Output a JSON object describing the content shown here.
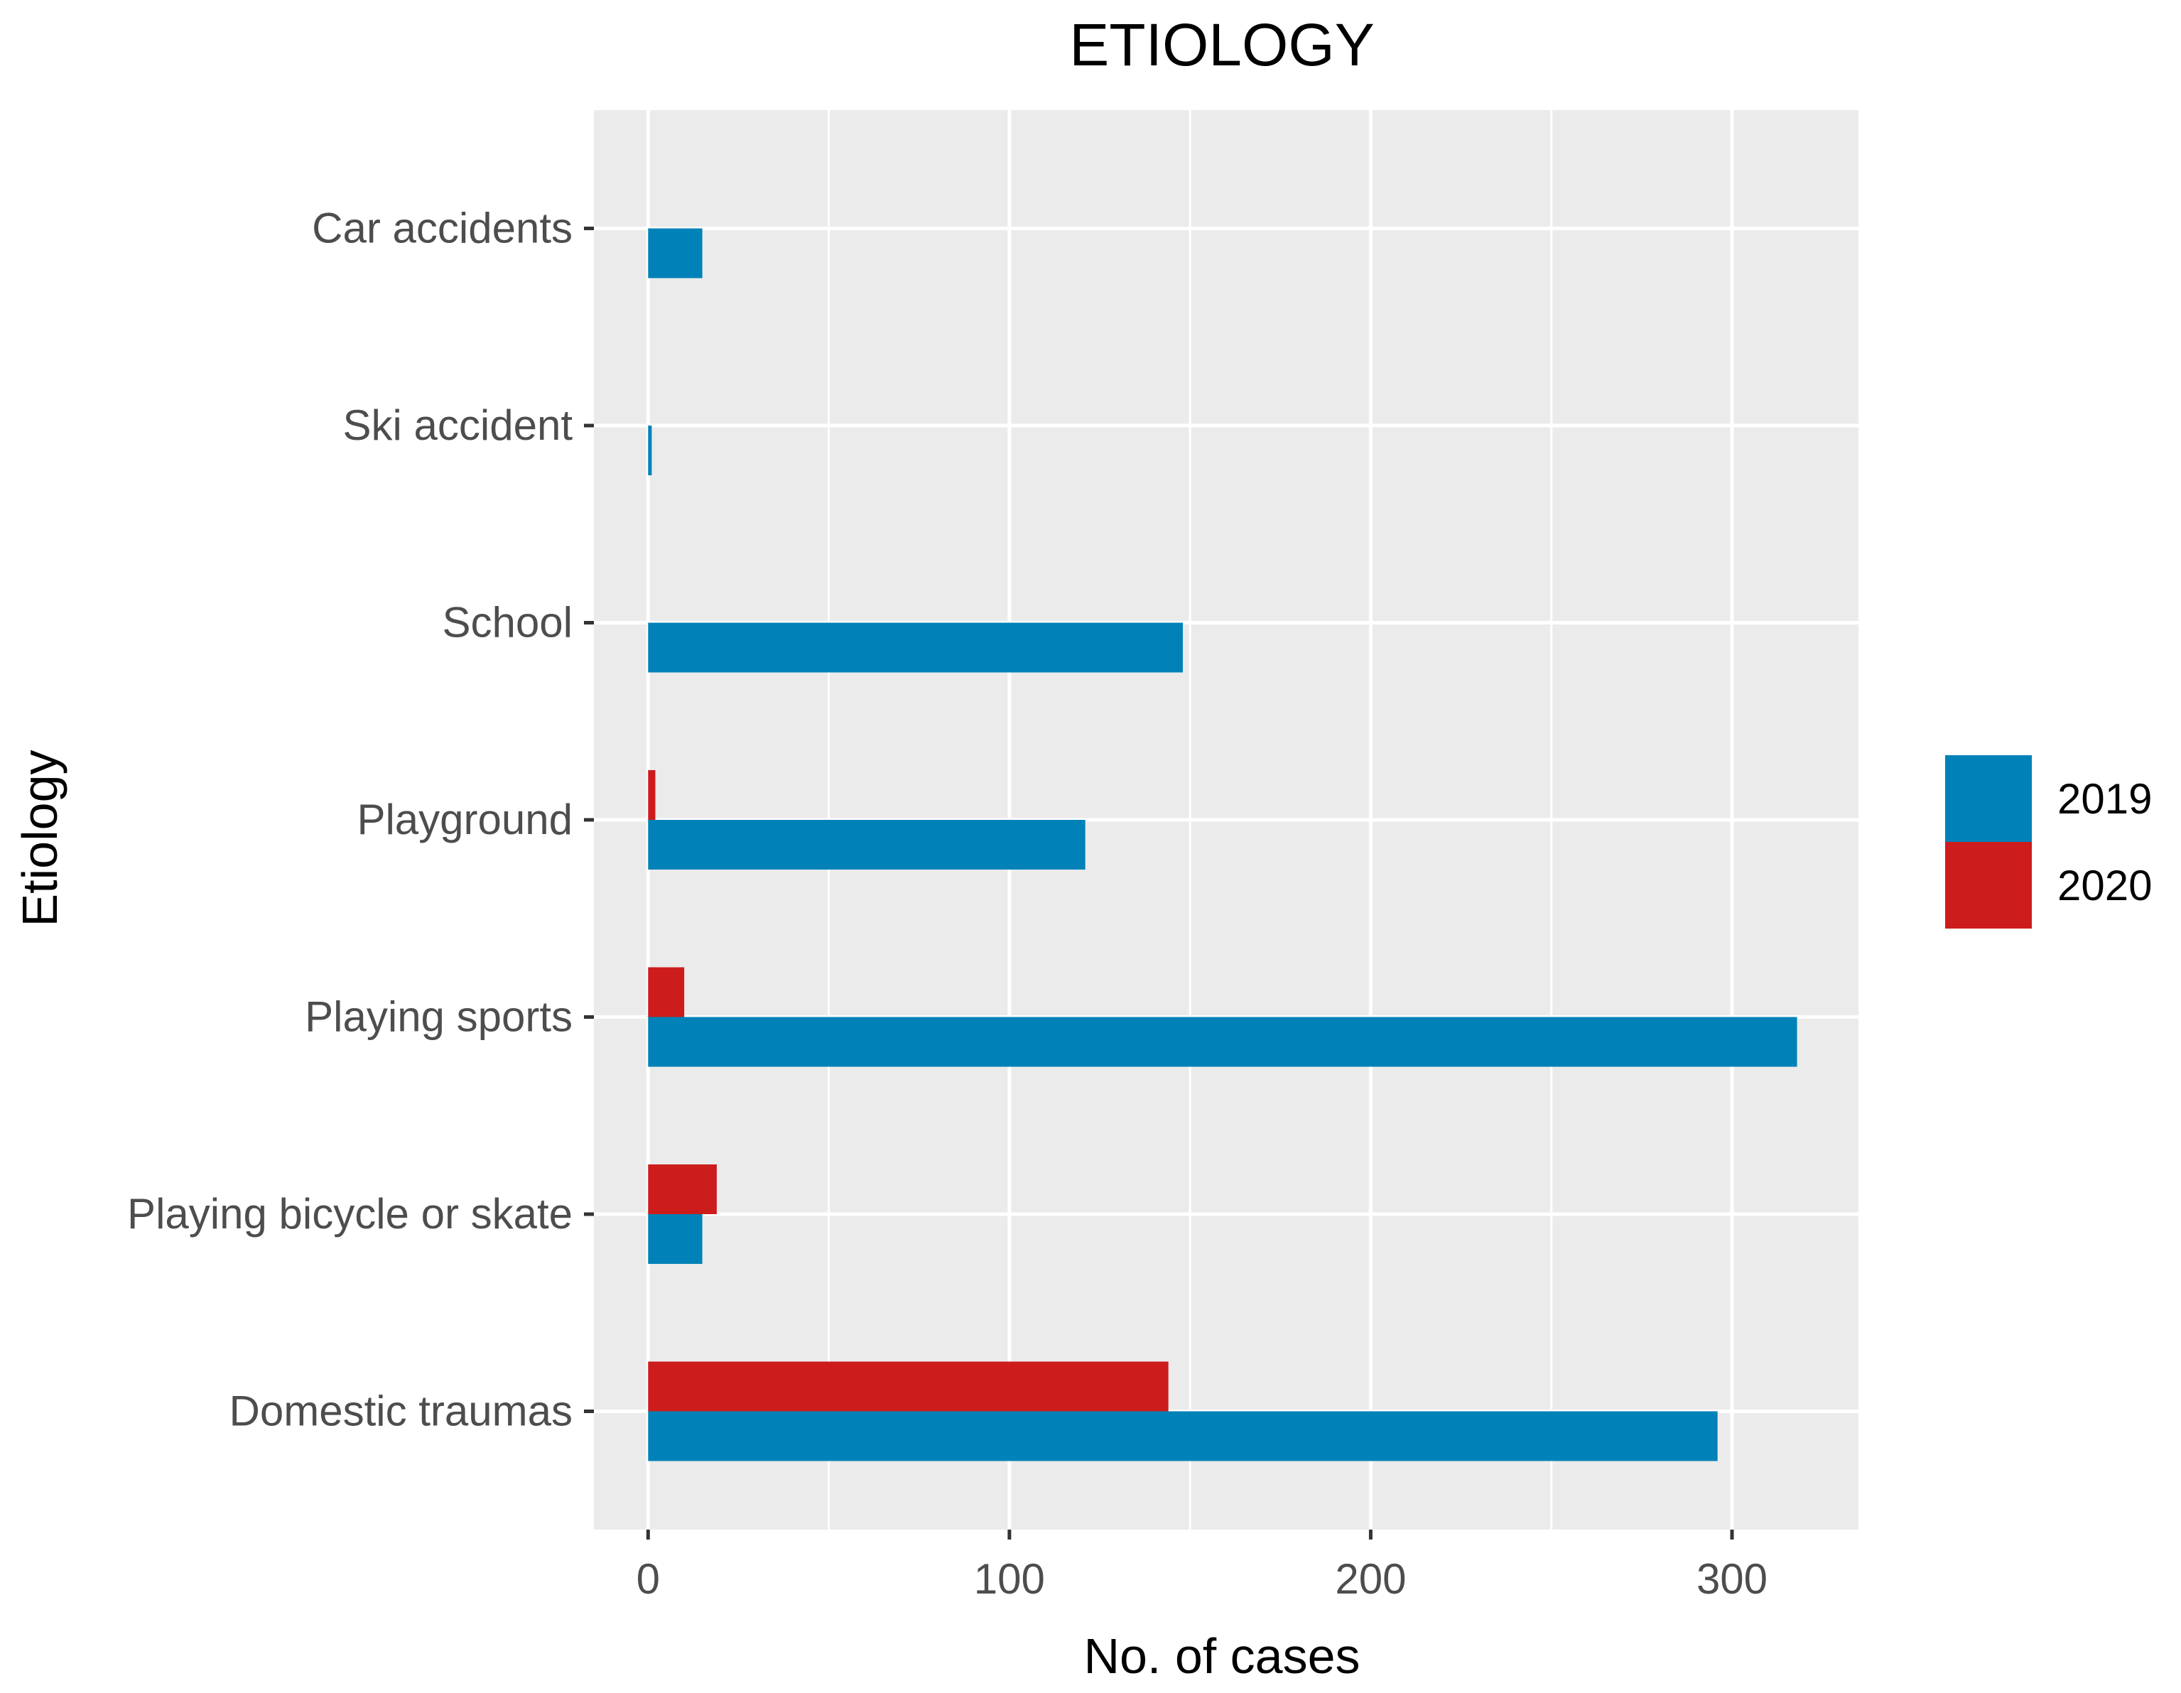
{
  "chart_data": {
    "type": "bar",
    "orientation": "horizontal",
    "title": "ETIOLOGY",
    "xlabel": "No. of cases",
    "ylabel": "Etiology",
    "categories": [
      "Car accidents",
      "Ski accident",
      "School",
      "Playground",
      "Playing sports",
      "Playing bicycle or skate",
      "Domestic traumas"
    ],
    "series": [
      {
        "name": "2019",
        "color": "#0082b8",
        "values": [
          15,
          1,
          148,
          121,
          318,
          15,
          296
        ]
      },
      {
        "name": "2020",
        "color": "#cc1c1c",
        "values": [
          0,
          0,
          0,
          2,
          10,
          19,
          144
        ]
      }
    ],
    "xlim": [
      -15,
      335
    ],
    "xticks": [
      0,
      100,
      200,
      300
    ],
    "xtick_labels": [
      "0",
      "100",
      "200",
      "300"
    ],
    "grid": true,
    "legend_position": "right",
    "panel_background": "#ebebeb",
    "grid_color": "#ffffff"
  }
}
